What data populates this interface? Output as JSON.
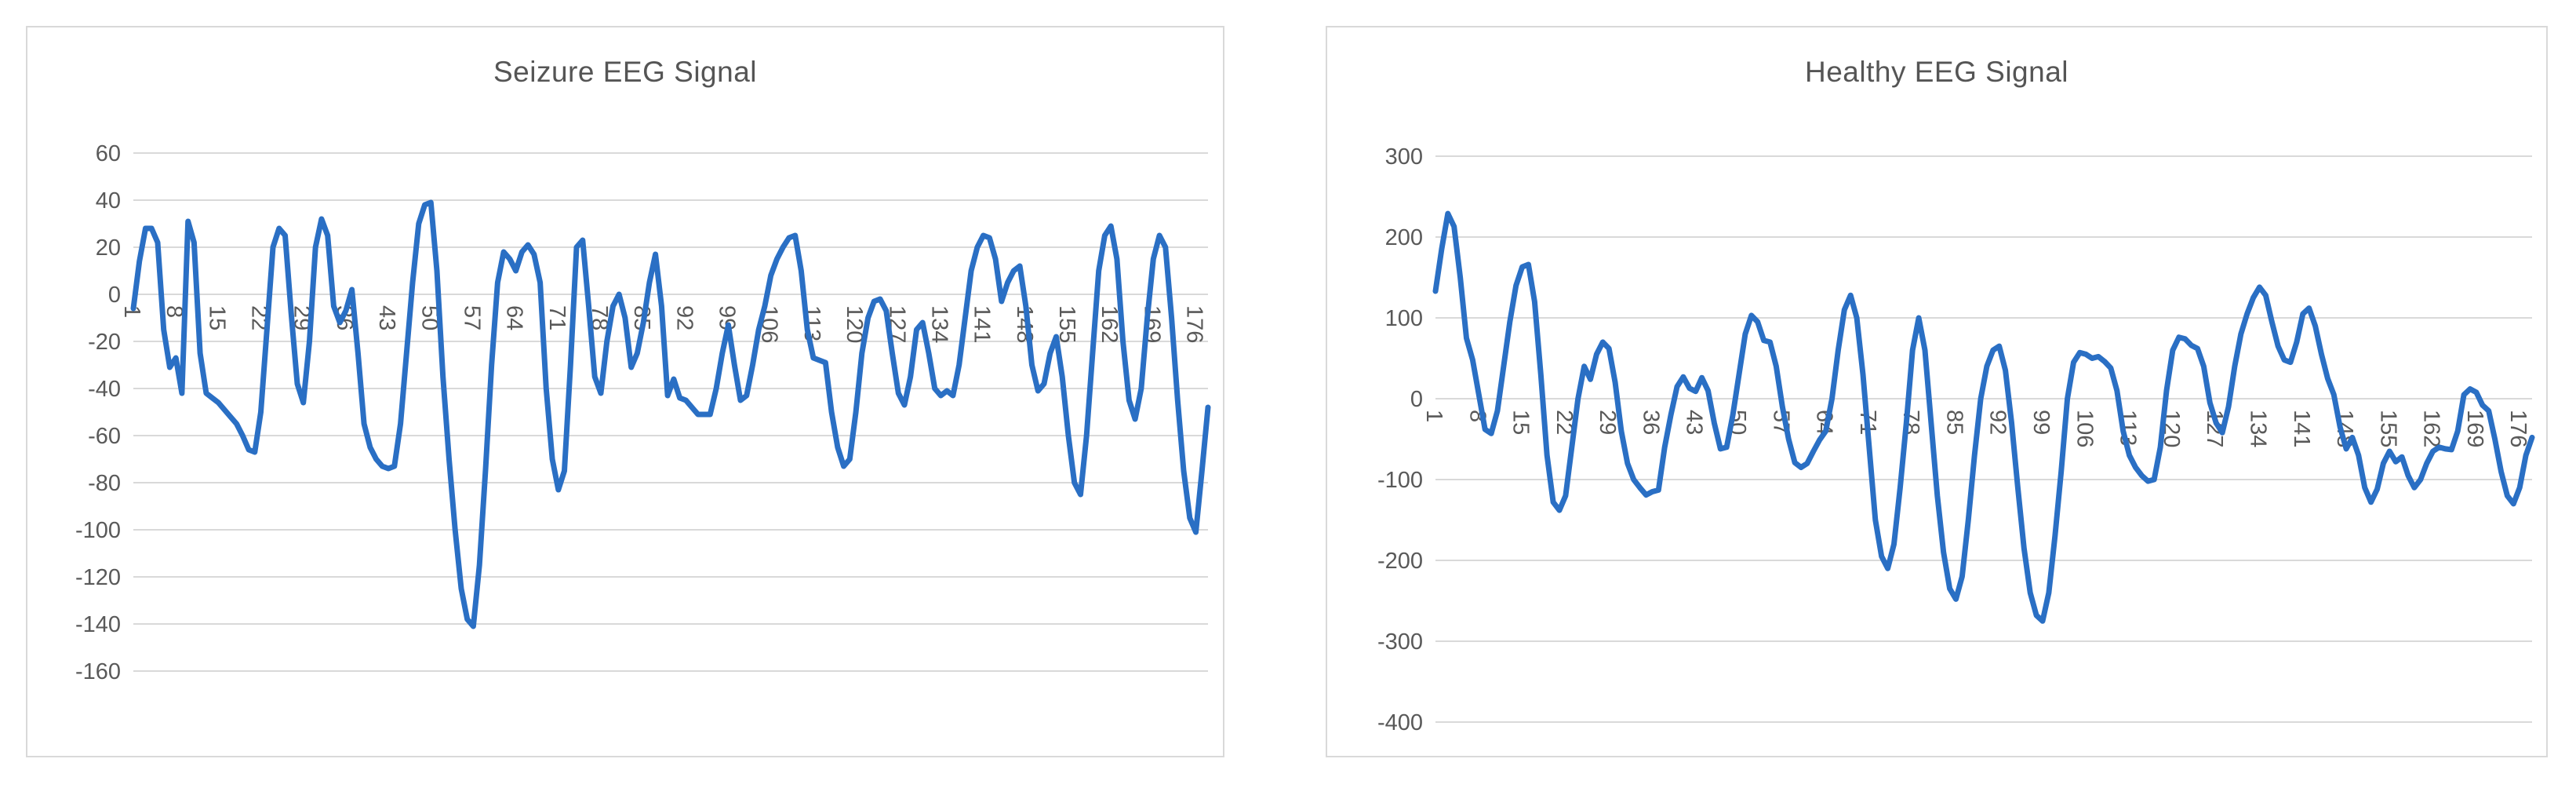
{
  "page": {
    "background": "#ffffff"
  },
  "chart_data": [
    {
      "type": "line",
      "title": "Seizure EEG Signal",
      "xlabel": "",
      "ylabel": "",
      "legend": "none",
      "grid": "horizontal",
      "line_color": "#2a6fc4",
      "grid_color": "#d9d9d9",
      "tick_color": "#595959",
      "ylim": [
        -160,
        60
      ],
      "y_ticks": [
        60,
        40,
        20,
        0,
        -20,
        -40,
        -60,
        -80,
        -100,
        -120,
        -140,
        -160
      ],
      "x_tick_labels": [
        "1",
        "8",
        "15",
        "22",
        "29",
        "36",
        "43",
        "50",
        "57",
        "64",
        "71",
        "78",
        "85",
        "92",
        "99",
        "106",
        "113",
        "120",
        "127",
        "134",
        "141",
        "148",
        "155",
        "162",
        "169",
        "176"
      ],
      "x_tick_step": 7,
      "x_count": 178,
      "values": [
        -6,
        14,
        28,
        28,
        22,
        -15,
        -31,
        -27,
        -42,
        31,
        22,
        -25,
        -42,
        -44,
        -46,
        -49,
        -52,
        -55,
        -60,
        -66,
        -67,
        -50,
        -15,
        20,
        28,
        25,
        -8,
        -38,
        -46,
        -20,
        20,
        32,
        25,
        -5,
        -12,
        -7,
        2,
        -25,
        -55,
        -65,
        -70,
        -73,
        -74,
        -73,
        -55,
        -25,
        5,
        30,
        38,
        39,
        10,
        -35,
        -70,
        -100,
        -125,
        -138,
        -141,
        -115,
        -75,
        -30,
        5,
        18,
        15,
        10,
        18,
        21,
        17,
        5,
        -40,
        -70,
        -83,
        -75,
        -30,
        20,
        23,
        -5,
        -35,
        -42,
        -20,
        -5,
        0,
        -10,
        -31,
        -25,
        -12,
        5,
        17,
        -5,
        -43,
        -36,
        -44,
        -45,
        -48,
        -51,
        -51,
        -51,
        -40,
        -25,
        -13,
        -30,
        -45,
        -43,
        -30,
        -15,
        -5,
        8,
        15,
        20,
        24,
        25,
        10,
        -15,
        -27,
        -28,
        -29,
        -50,
        -65,
        -73,
        -70,
        -50,
        -25,
        -10,
        -3,
        -2,
        -7,
        -25,
        -42,
        -47,
        -35,
        -15,
        -12,
        -25,
        -40,
        -43,
        -41,
        -43,
        -30,
        -10,
        10,
        20,
        25,
        24,
        15,
        -3,
        5,
        10,
        12,
        -5,
        -30,
        -41,
        -38,
        -25,
        -18,
        -35,
        -60,
        -80,
        -85,
        -60,
        -25,
        10,
        25,
        29,
        15,
        -20,
        -45,
        -53,
        -40,
        -10,
        15,
        25,
        20,
        -10,
        -45,
        -75,
        -95,
        -101,
        -75,
        -48
      ]
    },
    {
      "type": "line",
      "title": "Healthy EEG Signal",
      "xlabel": "",
      "ylabel": "",
      "legend": "none",
      "grid": "horizontal",
      "line_color": "#2a6fc4",
      "grid_color": "#d9d9d9",
      "tick_color": "#595959",
      "ylim": [
        -400,
        300
      ],
      "y_ticks": [
        300,
        200,
        100,
        0,
        -100,
        -200,
        -300,
        -400
      ],
      "x_tick_labels": [
        "1",
        "8",
        "15",
        "22",
        "29",
        "36",
        "43",
        "50",
        "57",
        "64",
        "71",
        "78",
        "85",
        "92",
        "99",
        "106",
        "113",
        "120",
        "127",
        "134",
        "141",
        "148",
        "155",
        "162",
        "169",
        "176"
      ],
      "x_tick_step": 7,
      "x_count": 178,
      "values": [
        133,
        185,
        229,
        213,
        150,
        75,
        48,
        5,
        -38,
        -43,
        -15,
        40,
        95,
        140,
        163,
        166,
        120,
        30,
        -70,
        -128,
        -138,
        -120,
        -60,
        0,
        40,
        24,
        55,
        70,
        62,
        20,
        -40,
        -80,
        -100,
        -110,
        -119,
        -115,
        -113,
        -60,
        -20,
        15,
        27,
        13,
        9,
        26,
        10,
        -30,
        -62,
        -60,
        -20,
        30,
        80,
        103,
        95,
        72,
        70,
        40,
        -10,
        -50,
        -79,
        -85,
        -80,
        -65,
        -51,
        -40,
        0,
        60,
        110,
        128,
        100,
        30,
        -60,
        -150,
        -195,
        -210,
        -180,
        -110,
        -30,
        60,
        100,
        60,
        -30,
        -120,
        -190,
        -235,
        -248,
        -220,
        -150,
        -70,
        0,
        40,
        60,
        65,
        35,
        -30,
        -110,
        -185,
        -240,
        -268,
        -275,
        -240,
        -170,
        -90,
        0,
        45,
        57,
        55,
        50,
        52,
        46,
        38,
        10,
        -40,
        -70,
        -85,
        -95,
        -102,
        -100,
        -60,
        10,
        60,
        76,
        74,
        66,
        62,
        40,
        -5,
        -30,
        -42,
        -10,
        40,
        80,
        105,
        125,
        138,
        128,
        95,
        65,
        48,
        45,
        70,
        105,
        112,
        90,
        55,
        25,
        5,
        -35,
        -62,
        -48,
        -70,
        -110,
        -128,
        -112,
        -80,
        -65,
        -78,
        -72,
        -95,
        -110,
        -100,
        -80,
        -65,
        -60,
        -62,
        -63,
        -40,
        5,
        12,
        8,
        -8,
        -15,
        -50,
        -90,
        -120,
        -130,
        -110,
        -70,
        -48
      ]
    }
  ]
}
